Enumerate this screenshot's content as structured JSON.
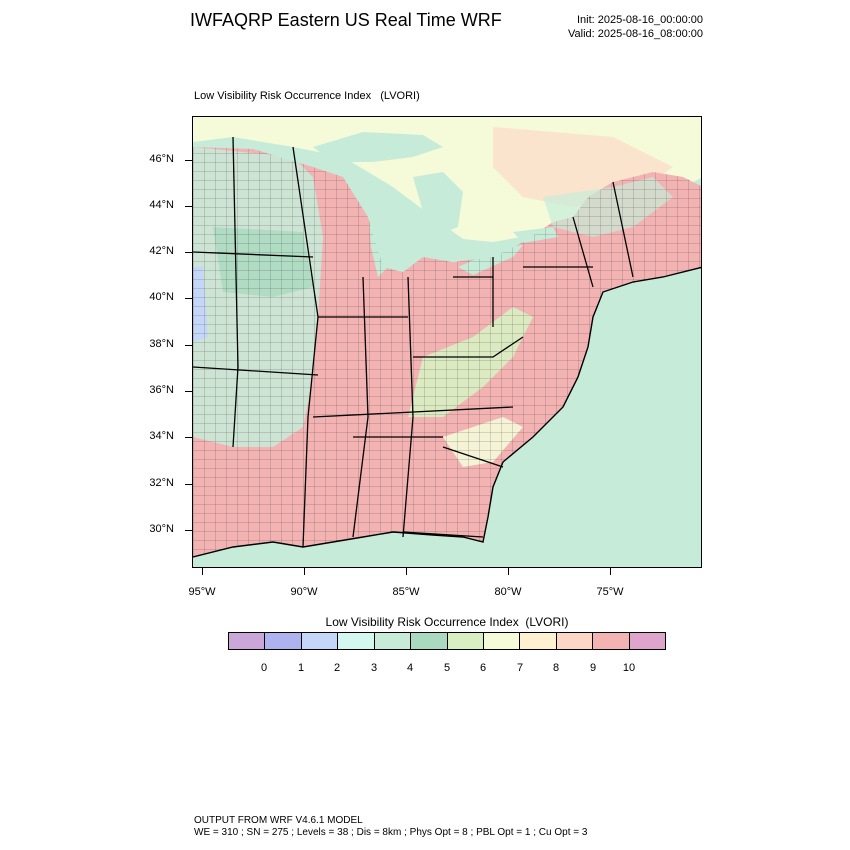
{
  "header": {
    "title": "IWFAQRP Eastern US Real Time WRF",
    "init": "Init: 2025-08-16_00:00:00",
    "valid": "Valid: 2025-08-16_08:00:00"
  },
  "map": {
    "title": "Low Visibility Risk Occurrence Index   (LVORI)",
    "lat_labels": [
      "46°N",
      "44°N",
      "42°N",
      "40°N",
      "38°N",
      "36°N",
      "34°N",
      "32°N",
      "30°N"
    ],
    "lon_labels": [
      "95°W",
      "90°W",
      "85°W",
      "80°W",
      "75°W"
    ],
    "ocean_color": "#c6ecd9",
    "land_dominant_color": "#f3b3b3",
    "border_color": "#000000"
  },
  "colorbar": {
    "title": "Low Visibility Risk Occurrence Index  (LVORI)",
    "colors": [
      "#cba6d9",
      "#aeb2ee",
      "#c5d7f8",
      "#d2f8f0",
      "#c6ecd9",
      "#a9d9bf",
      "#d8efc2",
      "#f5fad9",
      "#fef0d0",
      "#fdd6c5",
      "#f3b3b3",
      "#dea4cc"
    ],
    "labels": [
      "0",
      "1",
      "2",
      "3",
      "4",
      "5",
      "6",
      "7",
      "8",
      "9",
      "10"
    ]
  },
  "footer": {
    "line1": "OUTPUT FROM WRF V4.6.1 MODEL",
    "line2": "WE = 310 ; SN = 275 ; Levels = 38 ; Dis = 8km ; Phys Opt = 8 ; PBL Opt = 1 ; Cu Opt = 3"
  }
}
